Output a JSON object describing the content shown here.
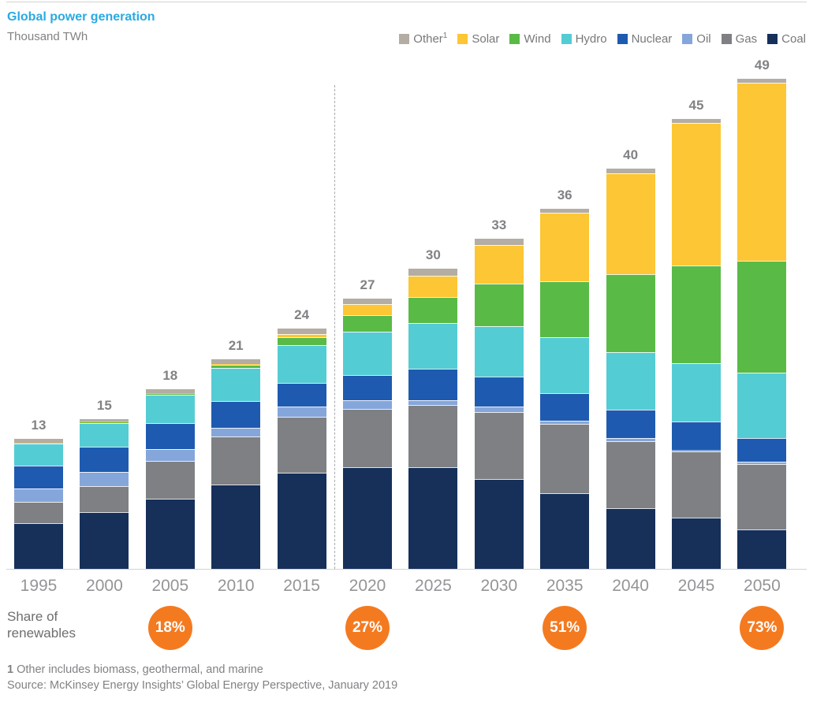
{
  "header": {
    "title": "Global power generation",
    "subtitle": "Thousand TWh"
  },
  "legend": [
    {
      "label": "Other",
      "sup": "1",
      "series": "Other"
    },
    {
      "label": "Solar",
      "sup": "",
      "series": "Solar"
    },
    {
      "label": "Wind",
      "sup": "",
      "series": "Wind"
    },
    {
      "label": "Hydro",
      "sup": "",
      "series": "Hydro"
    },
    {
      "label": "Nuclear",
      "sup": "",
      "series": "Nuclear"
    },
    {
      "label": "Oil",
      "sup": "",
      "series": "Oil"
    },
    {
      "label": "Gas",
      "sup": "",
      "series": "Gas"
    },
    {
      "label": "Coal",
      "sup": "",
      "series": "Coal"
    }
  ],
  "chart_data": {
    "type": "bar",
    "stacked": true,
    "title": "Global power generation",
    "ylabel": "Thousand TWh",
    "categories": [
      "1995",
      "2000",
      "2005",
      "2010",
      "2015",
      "2020",
      "2025",
      "2030",
      "2035",
      "2040",
      "2045",
      "2050"
    ],
    "totals": [
      13,
      15,
      18,
      21,
      24,
      27,
      30,
      33,
      36,
      40,
      45,
      49
    ],
    "series": [
      {
        "name": "Coal",
        "color": "#16305a",
        "values": [
          4.6,
          5.7,
          7.0,
          8.4,
          9.6,
          10.2,
          10.2,
          9.0,
          7.6,
          6.1,
          5.1,
          3.9
        ]
      },
      {
        "name": "Gas",
        "color": "#7e8083",
        "values": [
          2.1,
          2.6,
          3.8,
          4.8,
          5.6,
          5.8,
          6.2,
          6.7,
          6.9,
          6.7,
          6.6,
          6.6
        ]
      },
      {
        "name": "Oil",
        "color": "#85a6da",
        "values": [
          1.3,
          1.4,
          1.2,
          0.9,
          1.0,
          0.9,
          0.5,
          0.5,
          0.3,
          0.25,
          0.2,
          0.25
        ]
      },
      {
        "name": "Nuclear",
        "color": "#1e5bb0",
        "values": [
          2.3,
          2.5,
          2.6,
          2.7,
          2.4,
          2.5,
          3.1,
          3.0,
          2.8,
          2.9,
          2.8,
          2.35
        ]
      },
      {
        "name": "Hydro",
        "color": "#54ccd4",
        "values": [
          2.2,
          2.4,
          2.8,
          3.3,
          3.8,
          4.3,
          4.6,
          5.1,
          5.6,
          5.7,
          5.9,
          6.5
        ]
      },
      {
        "name": "Wind",
        "color": "#5aba46",
        "values": [
          0.03,
          0.05,
          0.1,
          0.3,
          0.8,
          1.7,
          2.6,
          4.2,
          5.6,
          7.8,
          9.7,
          11.2
        ]
      },
      {
        "name": "Solar",
        "color": "#fcc634",
        "values": [
          0.07,
          0.05,
          0.05,
          0.1,
          0.3,
          1.1,
          2.1,
          3.9,
          6.8,
          10.1,
          14.3,
          17.8
        ]
      },
      {
        "name": "Other",
        "color": "#b3ada3",
        "values": [
          0.4,
          0.3,
          0.45,
          0.5,
          0.5,
          0.5,
          0.7,
          0.6,
          0.4,
          0.45,
          0.4,
          0.4
        ]
      }
    ],
    "forecast_divider_between": [
      "2015",
      "2020"
    ],
    "legend_position": "top-right",
    "grid": false
  },
  "share_of_renewables": {
    "label_line1": "Share of",
    "label_line2": "renewables",
    "badge_color": "#f47a20",
    "items": [
      {
        "category": "2005",
        "value": "18%"
      },
      {
        "category": "2020",
        "value": "27%"
      },
      {
        "category": "2035",
        "value": "51%"
      },
      {
        "category": "2050",
        "value": "73%"
      }
    ]
  },
  "footnotes": {
    "note_marker": "1",
    "note_text": " Other includes biomass, geothermal, and marine",
    "source": "Source: McKinsey Energy Insights’ Global Energy Perspective, January 2019"
  }
}
